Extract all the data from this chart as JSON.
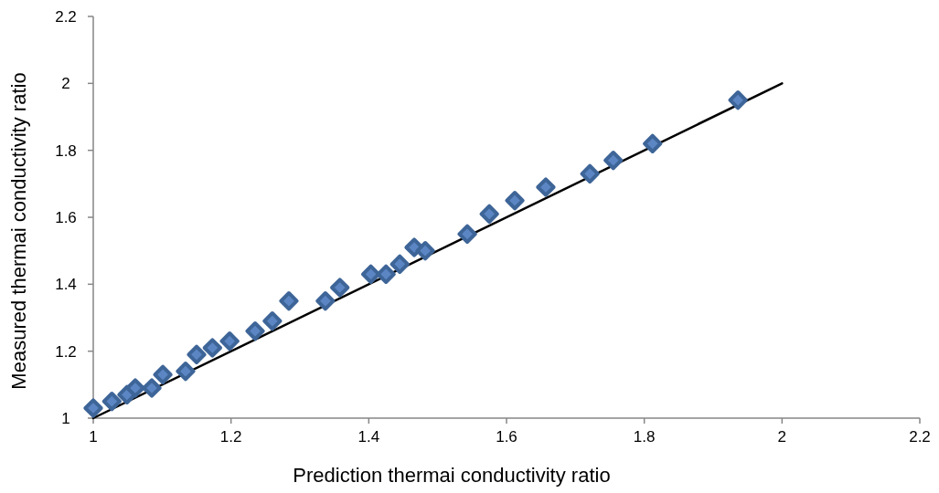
{
  "chart_data": {
    "type": "scatter",
    "xlabel": "Prediction thermai conductivity ratio",
    "ylabel": "Measured thermai conductivity ratio",
    "xlim": [
      1,
      2.2
    ],
    "xticks": [
      1,
      1.2,
      1.4,
      1.6,
      1.8,
      2,
      2.2
    ],
    "ylim": [
      1,
      2.2
    ],
    "yticks": [
      1,
      1.2,
      1.4,
      1.6,
      1.8,
      2,
      2.2
    ],
    "grid": false,
    "series": [
      {
        "type": "line",
        "color": "#000000",
        "x": [
          1,
          2
        ],
        "values": [
          1,
          2
        ],
        "marker": "none",
        "line_style": "solid"
      },
      {
        "color": "#3e6598",
        "marker": "diamond",
        "x": [
          1.0,
          1.027,
          1.049,
          1.061,
          1.085,
          1.101,
          1.134,
          1.15,
          1.173,
          1.198,
          1.235,
          1.26,
          1.284,
          1.337,
          1.358,
          1.403,
          1.425,
          1.445,
          1.466,
          1.482,
          1.543,
          1.575,
          1.612,
          1.657,
          1.721,
          1.755,
          1.812,
          1.936
        ],
        "values": [
          1.03,
          1.05,
          1.07,
          1.09,
          1.09,
          1.13,
          1.14,
          1.19,
          1.21,
          1.23,
          1.26,
          1.29,
          1.35,
          1.35,
          1.39,
          1.43,
          1.43,
          1.46,
          1.51,
          1.5,
          1.55,
          1.61,
          1.65,
          1.69,
          1.73,
          1.77,
          1.82,
          1.95
        ]
      }
    ]
  }
}
